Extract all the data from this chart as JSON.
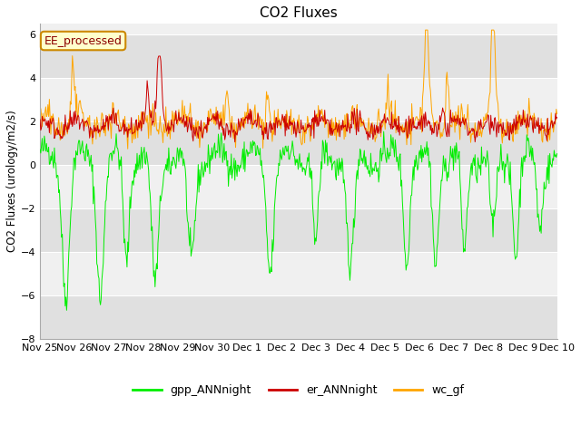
{
  "title": "CO2 Fluxes",
  "ylabel": "CO2 Fluxes (urology/m2/s)",
  "ylim": [
    -8,
    6.5
  ],
  "yticks": [
    -8,
    -6,
    -4,
    -2,
    0,
    2,
    4,
    6
  ],
  "fig_bg": "#ffffff",
  "plot_bg": "#f0f0f0",
  "band_color": "#e0e0e0",
  "annotation_text": "EE_processed",
  "annotation_bg": "#ffffcc",
  "annotation_border": "#cc8800",
  "annotation_text_color": "#8B0000",
  "legend_labels": [
    "gpp_ANNnight",
    "er_ANNnight",
    "wc_gf"
  ],
  "line_colors": [
    "#00ee00",
    "#cc0000",
    "#ffa500"
  ],
  "xtick_labels": [
    "Nov 25",
    "Nov 26",
    "Nov 27",
    "Nov 28",
    "Nov 29",
    "Nov 30",
    "Dec 1",
    "Dec 2",
    "Dec 3",
    "Dec 4",
    "Dec 5",
    "Dec 6",
    "Dec 7",
    "Dec 8",
    "Dec 9",
    "Dec 10"
  ],
  "seed": 42,
  "n_points": 720,
  "total_days": 15
}
